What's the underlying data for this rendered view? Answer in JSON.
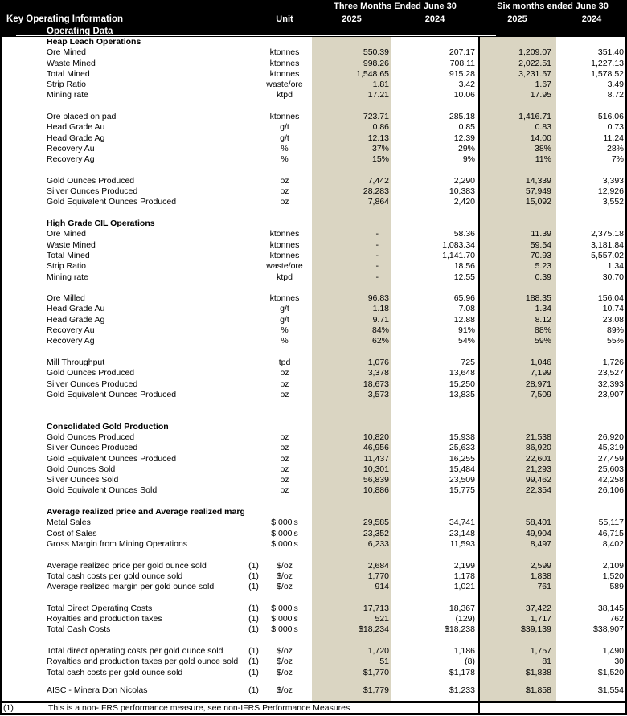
{
  "header": {
    "title": "Key Operating Information",
    "subtitle": "Operating Data",
    "unit_label": "Unit",
    "period_three_months": "Three Months Ended June 30",
    "period_six_months": "Six months ended June 30",
    "years": [
      "2025",
      "2024",
      "2025",
      "2024"
    ]
  },
  "colors": {
    "header_bg": "#000000",
    "header_fg": "#ffffff",
    "highlight_2025_columns": "#dad5c2"
  },
  "table": {
    "rows": [
      {
        "t": "s",
        "label": "Heap Leach Operations"
      },
      {
        "t": "d",
        "label": "Ore Mined",
        "unit": "ktonnes",
        "v": [
          "550.39",
          "207.17",
          "1,209.07",
          "351.40"
        ]
      },
      {
        "t": "d",
        "label": "Waste Mined",
        "unit": "ktonnes",
        "v": [
          "998.26",
          "708.11",
          "2,022.51",
          "1,227.13"
        ]
      },
      {
        "t": "d",
        "label": "Total Mined",
        "unit": "ktonnes",
        "v": [
          "1,548.65",
          "915.28",
          "3,231.57",
          "1,578.52"
        ]
      },
      {
        "t": "d",
        "label": "Strip Ratio",
        "unit": "waste/ore",
        "v": [
          "1.81",
          "3.42",
          "1.67",
          "3.49"
        ]
      },
      {
        "t": "d",
        "label": "Mining rate",
        "unit": "ktpd",
        "v": [
          "17.21",
          "10.06",
          "17.95",
          "8.72"
        ]
      },
      {
        "t": "b"
      },
      {
        "t": "d",
        "label": "Ore placed on pad",
        "unit": "ktonnes",
        "v": [
          "723.71",
          "285.18",
          "1,416.71",
          "516.06"
        ]
      },
      {
        "t": "d",
        "label": "Head Grade Au",
        "unit": "g/t",
        "v": [
          "0.86",
          "0.85",
          "0.83",
          "0.73"
        ]
      },
      {
        "t": "d",
        "label": "Head Grade Ag",
        "unit": "g/t",
        "v": [
          "12.13",
          "12.39",
          "14.00",
          "11.24"
        ]
      },
      {
        "t": "d",
        "label": "Recovery Au",
        "unit": "%",
        "v": [
          "37%",
          "29%",
          "38%",
          "28%"
        ]
      },
      {
        "t": "d",
        "label": "Recovery Ag",
        "unit": "%",
        "v": [
          "15%",
          "9%",
          "11%",
          "7%"
        ]
      },
      {
        "t": "b"
      },
      {
        "t": "d",
        "label": "Gold Ounces Produced",
        "unit": "oz",
        "v": [
          "7,442",
          "2,290",
          "14,339",
          "3,393"
        ]
      },
      {
        "t": "d",
        "label": "Silver Ounces Produced",
        "unit": "oz",
        "v": [
          "28,283",
          "10,383",
          "57,949",
          "12,926"
        ]
      },
      {
        "t": "d",
        "label": "Gold Equivalent Ounces Produced",
        "unit": "oz",
        "v": [
          "7,864",
          "2,420",
          "15,092",
          "3,552"
        ]
      },
      {
        "t": "b"
      },
      {
        "t": "s",
        "label": "High Grade CIL Operations"
      },
      {
        "t": "d",
        "label": "Ore Mined",
        "unit": "ktonnes",
        "v": [
          "-",
          "58.36",
          "11.39",
          "2,375.18"
        ]
      },
      {
        "t": "d",
        "label": "Waste Mined",
        "unit": "ktonnes",
        "v": [
          "-",
          "1,083.34",
          "59.54",
          "3,181.84"
        ]
      },
      {
        "t": "d",
        "label": "Total Mined",
        "unit": "ktonnes",
        "v": [
          "-",
          "1,141.70",
          "70.93",
          "5,557.02"
        ]
      },
      {
        "t": "d",
        "label": "Strip Ratio",
        "unit": "waste/ore",
        "v": [
          "-",
          "18.56",
          "5.23",
          "1.34"
        ]
      },
      {
        "t": "d",
        "label": "Mining rate",
        "unit": "ktpd",
        "v": [
          "-",
          "12.55",
          "0.39",
          "30.70"
        ]
      },
      {
        "t": "b"
      },
      {
        "t": "d",
        "label": "Ore Milled",
        "unit": "ktonnes",
        "v": [
          "96.83",
          "65.96",
          "188.35",
          "156.04"
        ]
      },
      {
        "t": "d",
        "label": "Head Grade Au",
        "unit": "g/t",
        "v": [
          "1.18",
          "7.08",
          "1.34",
          "10.74"
        ]
      },
      {
        "t": "d",
        "label": "Head Grade Ag",
        "unit": "g/t",
        "v": [
          "9.71",
          "12.88",
          "8.12",
          "23.08"
        ]
      },
      {
        "t": "d",
        "label": "Recovery Au",
        "unit": "%",
        "v": [
          "84%",
          "91%",
          "88%",
          "89%"
        ]
      },
      {
        "t": "d",
        "label": "Recovery Ag",
        "unit": "%",
        "v": [
          "62%",
          "54%",
          "59%",
          "55%"
        ]
      },
      {
        "t": "b"
      },
      {
        "t": "d",
        "label": "Mill Throughput",
        "unit": "tpd",
        "v": [
          "1,076",
          "725",
          "1,046",
          "1,726"
        ]
      },
      {
        "t": "d",
        "label": "Gold Ounces Produced",
        "unit": "oz",
        "v": [
          "3,378",
          "13,648",
          "7,199",
          "23,527"
        ]
      },
      {
        "t": "d",
        "label": "Silver Ounces Produced",
        "unit": "oz",
        "v": [
          "18,673",
          "15,250",
          "28,971",
          "32,393"
        ]
      },
      {
        "t": "d",
        "label": "Gold Equivalent Ounces Produced",
        "unit": "oz",
        "v": [
          "3,573",
          "13,835",
          "7,509",
          "23,907"
        ]
      },
      {
        "t": "b"
      },
      {
        "t": "b"
      },
      {
        "t": "s",
        "label": "Consolidated Gold Production"
      },
      {
        "t": "d",
        "label": "Gold Ounces Produced",
        "unit": "oz",
        "v": [
          "10,820",
          "15,938",
          "21,538",
          "26,920"
        ]
      },
      {
        "t": "d",
        "label": "Silver Ounces Produced",
        "unit": "oz",
        "v": [
          "46,956",
          "25,633",
          "86,920",
          "45,319"
        ]
      },
      {
        "t": "d",
        "label": "Gold Equivalent Ounces Produced",
        "unit": "oz",
        "v": [
          "11,437",
          "16,255",
          "22,601",
          "27,459"
        ]
      },
      {
        "t": "d",
        "label": "Gold Ounces Sold",
        "unit": "oz",
        "v": [
          "10,301",
          "15,484",
          "21,293",
          "25,603"
        ]
      },
      {
        "t": "d",
        "label": "Silver Ounces Sold",
        "unit": "oz",
        "v": [
          "56,839",
          "23,509",
          "99,462",
          "42,258"
        ]
      },
      {
        "t": "d",
        "label": "Gold Equivalent Ounces Sold",
        "unit": "oz",
        "v": [
          "10,886",
          "15,775",
          "22,354",
          "26,106"
        ]
      },
      {
        "t": "b"
      },
      {
        "t": "s",
        "label": "Average realized price and Average realized margin"
      },
      {
        "t": "d",
        "label": "Metal Sales",
        "unit": "$ 000's",
        "v": [
          "29,585",
          "34,741",
          "58,401",
          "55,117"
        ]
      },
      {
        "t": "d",
        "label": "Cost of Sales",
        "unit": "$ 000's",
        "v": [
          "23,352",
          "23,148",
          "49,904",
          "46,715"
        ]
      },
      {
        "t": "d",
        "label": "Gross Margin from Mining Operations",
        "unit": "$ 000's",
        "v": [
          "6,233",
          "11,593",
          "8,497",
          "8,402"
        ]
      },
      {
        "t": "b"
      },
      {
        "t": "d",
        "label": "Average realized price per gold ounce sold",
        "fn": "(1)",
        "unit": "$/oz",
        "v": [
          "2,684",
          "2,199",
          "2,599",
          "2,109"
        ]
      },
      {
        "t": "d",
        "label": "Total cash costs per gold ounce sold",
        "fn": "(1)",
        "unit": "$/oz",
        "v": [
          "1,770",
          "1,178",
          "1,838",
          "1,520"
        ]
      },
      {
        "t": "d",
        "label": "Average realized margin per gold ounce sold",
        "fn": "(1)",
        "unit": "$/oz",
        "v": [
          "914",
          "1,021",
          "761",
          "589"
        ]
      },
      {
        "t": "b"
      },
      {
        "t": "d",
        "label": "Total Direct Operating Costs",
        "fn": "(1)",
        "unit": "$ 000's",
        "v": [
          "17,713",
          "18,367",
          "37,422",
          "38,145"
        ]
      },
      {
        "t": "d",
        "label": "Royalties and production taxes",
        "fn": "(1)",
        "unit": "$ 000's",
        "v": [
          "521",
          "(129)",
          "1,717",
          "762"
        ]
      },
      {
        "t": "d",
        "label": "Total Cash Costs",
        "fn": "(1)",
        "unit": "$ 000's",
        "v": [
          "$18,234",
          "$18,238",
          "$39,139",
          "$38,907"
        ]
      },
      {
        "t": "b"
      },
      {
        "t": "d",
        "label": "Total direct operating costs per gold ounce sold",
        "fn": "(1)",
        "unit": "$/oz",
        "v": [
          "1,720",
          "1,186",
          "1,757",
          "1,490"
        ]
      },
      {
        "t": "d",
        "label": "Royalties and production taxes per gold ounce sold",
        "fn": "(1)",
        "unit": "$/oz",
        "v": [
          "51",
          "(8)",
          "81",
          "30"
        ]
      },
      {
        "t": "d",
        "label": "Total cash costs per gold ounce sold",
        "fn": "(1)",
        "unit": "$/oz",
        "v": [
          "$1,770",
          "$1,178",
          "$1,838",
          "$1,520"
        ]
      },
      {
        "t": "r"
      },
      {
        "t": "d",
        "label": "AISC - Minera Don Nicolas",
        "fn": "(1)",
        "unit": "$/oz",
        "v": [
          "$1,779",
          "$1,233",
          "$1,858",
          "$1,554"
        ]
      }
    ]
  },
  "footnote": {
    "marker": "(1)",
    "text": "This is a non-IFRS performance measure, see non-IFRS Performance Measures"
  }
}
